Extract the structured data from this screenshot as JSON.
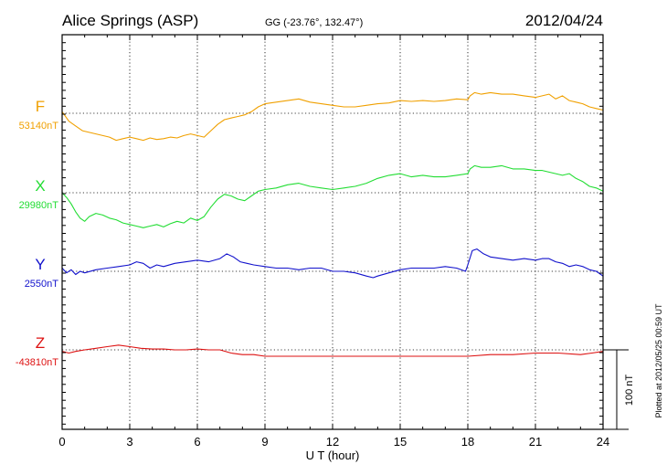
{
  "header": {
    "station": "Alice Springs (ASP)",
    "coords": "GG (-23.76°, 132.47°)",
    "date": "2012/04/24"
  },
  "plotted_note": "Plotted at 2012/05/25 00:59 UT",
  "scale_bar": {
    "label": "100 nT",
    "nT": 100
  },
  "chart_data": {
    "type": "line",
    "title": "Alice Springs (ASP)",
    "xlabel": "U T (hour)",
    "ylabel": "",
    "xlim": [
      0,
      24
    ],
    "xticks": [
      0,
      3,
      6,
      9,
      12,
      15,
      18,
      21,
      24
    ],
    "xtick_labels": [
      "0",
      "3",
      "6",
      "9",
      "12",
      "15",
      "18",
      "21",
      "24"
    ],
    "grid": true,
    "y_units": "nT deviation from baseline",
    "series": [
      {
        "name": "F",
        "baseline_label": "53140nT",
        "color": "#f0a000",
        "x": [
          0,
          0.3,
          0.6,
          0.9,
          1.2,
          1.5,
          1.8,
          2.1,
          2.4,
          2.7,
          3.0,
          3.3,
          3.6,
          3.9,
          4.2,
          4.5,
          4.8,
          5.1,
          5.4,
          5.7,
          6.0,
          6.3,
          6.6,
          6.9,
          7.2,
          7.5,
          7.8,
          8.1,
          8.4,
          8.7,
          9.0,
          9.5,
          10,
          10.5,
          11,
          11.5,
          12,
          12.5,
          13,
          13.5,
          14,
          14.5,
          15,
          15.5,
          16,
          16.5,
          17,
          17.5,
          18,
          18.1,
          18.3,
          18.6,
          19,
          19.5,
          20,
          20.5,
          21,
          21.3,
          21.6,
          21.9,
          22.2,
          22.5,
          22.8,
          23.1,
          23.4,
          23.7,
          24
        ],
        "values": [
          2,
          -10,
          -16,
          -22,
          -24,
          -26,
          -28,
          -30,
          -34,
          -32,
          -30,
          -32,
          -34,
          -31,
          -33,
          -32,
          -30,
          -31,
          -28,
          -26,
          -28,
          -30,
          -22,
          -14,
          -8,
          -6,
          -4,
          -2,
          2,
          8,
          12,
          14,
          16,
          18,
          14,
          12,
          10,
          8,
          8,
          10,
          12,
          13,
          16,
          15,
          16,
          15,
          16,
          18,
          17,
          22,
          26,
          24,
          26,
          24,
          24,
          22,
          20,
          22,
          24,
          18,
          22,
          16,
          14,
          12,
          8,
          6,
          4
        ]
      },
      {
        "name": "X",
        "baseline_label": "29980nT",
        "color": "#22dd33",
        "x": [
          0,
          0.2,
          0.4,
          0.6,
          0.8,
          1.0,
          1.2,
          1.5,
          1.8,
          2.1,
          2.4,
          2.7,
          3.0,
          3.3,
          3.6,
          3.9,
          4.2,
          4.5,
          4.8,
          5.1,
          5.4,
          5.7,
          6.0,
          6.3,
          6.6,
          6.9,
          7.2,
          7.5,
          7.8,
          8.1,
          8.4,
          8.7,
          9.0,
          9.5,
          10,
          10.5,
          11,
          11.5,
          12,
          12.5,
          13,
          13.5,
          14,
          14.5,
          15,
          15.5,
          16,
          16.5,
          17,
          17.5,
          18,
          18.1,
          18.3,
          18.6,
          19,
          19.5,
          20,
          20.5,
          21,
          21.3,
          21.6,
          21.9,
          22.2,
          22.5,
          22.8,
          23.1,
          23.4,
          23.7,
          24
        ],
        "values": [
          0,
          -6,
          -14,
          -24,
          -32,
          -36,
          -30,
          -26,
          -28,
          -32,
          -34,
          -38,
          -40,
          -42,
          -44,
          -42,
          -40,
          -43,
          -39,
          -36,
          -38,
          -32,
          -35,
          -30,
          -18,
          -8,
          -2,
          -4,
          -8,
          -10,
          -4,
          2,
          4,
          6,
          10,
          12,
          8,
          6,
          4,
          6,
          8,
          12,
          18,
          22,
          24,
          20,
          22,
          20,
          20,
          22,
          24,
          30,
          34,
          32,
          32,
          34,
          30,
          30,
          28,
          28,
          26,
          24,
          22,
          24,
          18,
          14,
          8,
          6,
          2
        ]
      },
      {
        "name": "Y",
        "baseline_label": "2550nT",
        "color": "#1111cc",
        "x": [
          0,
          0.2,
          0.4,
          0.6,
          0.8,
          1.0,
          1.5,
          2.0,
          2.5,
          3.0,
          3.3,
          3.6,
          3.9,
          4.2,
          4.5,
          5.0,
          5.5,
          6.0,
          6.5,
          7.0,
          7.3,
          7.6,
          7.9,
          8.2,
          8.5,
          9.0,
          9.5,
          10,
          10.5,
          11,
          11.5,
          12,
          12.5,
          13,
          13.5,
          13.8,
          14,
          14.5,
          15,
          15.5,
          16,
          16.5,
          17,
          17.5,
          17.9,
          18.0,
          18.2,
          18.4,
          18.7,
          19,
          19.5,
          20,
          20.5,
          21,
          21.3,
          21.6,
          21.9,
          22.2,
          22.5,
          22.8,
          23.1,
          23.4,
          23.7,
          24
        ],
        "values": [
          4,
          -2,
          2,
          -4,
          0,
          -2,
          2,
          4,
          6,
          8,
          12,
          10,
          4,
          8,
          6,
          10,
          12,
          14,
          12,
          16,
          22,
          18,
          12,
          10,
          8,
          6,
          4,
          4,
          2,
          4,
          4,
          0,
          0,
          -2,
          -6,
          -8,
          -6,
          -2,
          2,
          4,
          4,
          4,
          6,
          4,
          0,
          8,
          26,
          28,
          22,
          18,
          16,
          14,
          16,
          14,
          16,
          16,
          12,
          10,
          6,
          8,
          6,
          2,
          0,
          -6
        ]
      },
      {
        "name": "Z",
        "baseline_label": "-43810nT",
        "color": "#dd1111",
        "x": [
          0,
          0.3,
          0.6,
          1.0,
          1.5,
          2.0,
          2.5,
          3.0,
          3.5,
          4.0,
          4.5,
          5.0,
          5.5,
          6.0,
          6.5,
          7.0,
          7.5,
          8.0,
          8.5,
          9.0,
          10,
          11,
          12,
          13,
          14,
          15,
          16,
          17,
          18,
          19,
          20,
          21,
          22,
          23,
          23.5,
          24
        ],
        "values": [
          -2,
          -4,
          -2,
          0,
          2,
          4,
          6,
          4,
          2,
          1,
          1,
          0,
          0,
          1,
          0,
          0,
          -4,
          -6,
          -6,
          -8,
          -8,
          -8,
          -8,
          -8,
          -8,
          -8,
          -8,
          -8,
          -8,
          -6,
          -6,
          -4,
          -4,
          -6,
          -4,
          -2
        ]
      }
    ]
  }
}
